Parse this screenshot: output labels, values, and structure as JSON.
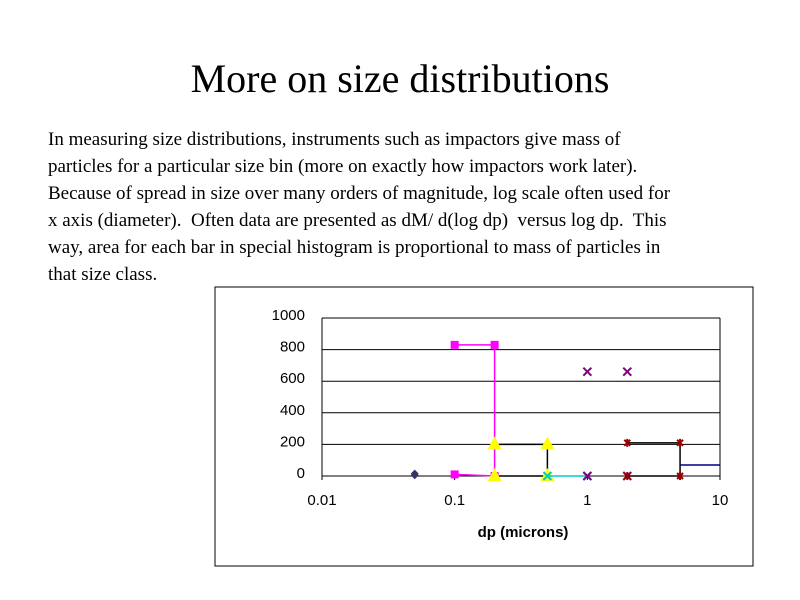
{
  "header": {
    "title": "More on size distributions"
  },
  "body_lines": [
    "In measuring size distributions, instruments such as impactors give mass of",
    "particles for a particular size bin (more on exactly how impactors work later).",
    "Because of spread in size over many orders of magnitude, log scale often used for",
    "x axis (diameter).  Often data are presented as dM/ d(log dp)  versus log dp.  This",
    "way, area for each bar in special histogram is proportional to mass of particles in",
    "that size class."
  ],
  "chart_data": {
    "type": "scatter",
    "x_label": "dp (microns)",
    "xlog": true,
    "xlim": [
      0.01,
      10
    ],
    "xticks": [
      0.01,
      0.1,
      1,
      10
    ],
    "ylim": [
      0,
      1000
    ],
    "yticks": [
      0,
      200,
      400,
      600,
      800,
      1000
    ],
    "grid": true,
    "series": [
      {
        "color": "#333366",
        "marker": "diamond",
        "line_color": null,
        "x": [
          0.05,
          0.05
        ],
        "values": [
          15,
          5
        ]
      },
      {
        "color": "#ff00ff",
        "marker": "square",
        "line_color": "#ff00ff",
        "x": [
          0.1,
          0.2,
          0.2,
          0.1
        ],
        "values": [
          830,
          830,
          0,
          10
        ]
      },
      {
        "color": "#ffff00",
        "marker": "triangle",
        "line_color": "#000000",
        "x": [
          0.2,
          0.5,
          0.5,
          0.2
        ],
        "values": [
          200,
          200,
          0,
          0
        ]
      },
      {
        "color": "#00cccc",
        "marker": "x",
        "line_color": "#00cccc",
        "x": [
          0.5,
          1
        ],
        "values": [
          0,
          0
        ]
      },
      {
        "color": "#800080",
        "marker": "x",
        "line_color": null,
        "x": [
          1,
          2,
          2,
          1
        ],
        "values": [
          660,
          660,
          0,
          0
        ]
      },
      {
        "color": "#990000",
        "marker": "star",
        "line_color": "#000000",
        "x": [
          2,
          5,
          5,
          2
        ],
        "values": [
          210,
          210,
          0,
          0
        ]
      },
      {
        "color": "#000080",
        "marker": "none",
        "line_color": "#000080",
        "x": [
          5,
          10
        ],
        "values": [
          70,
          70
        ]
      }
    ]
  }
}
